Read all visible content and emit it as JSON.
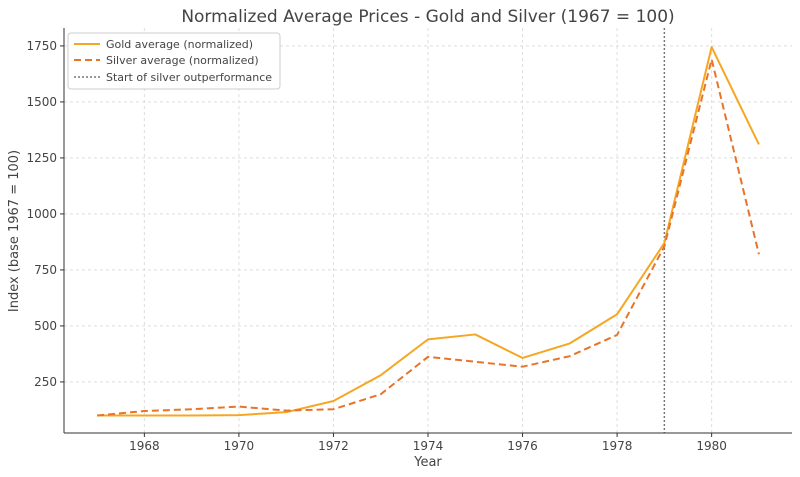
{
  "chart_data": {
    "type": "line",
    "title": "Normalized Average Prices - Gold and Silver (1967 = 100)",
    "xlabel": "Year",
    "ylabel": "Index (base 1967 = 100)",
    "xlim": [
      1966.3,
      1981.7
    ],
    "ylim": [
      22,
      1830
    ],
    "xticks": [
      1968,
      1970,
      1972,
      1974,
      1976,
      1978,
      1980
    ],
    "yticks": [
      250,
      500,
      750,
      1000,
      1250,
      1500,
      1750
    ],
    "x": [
      1967,
      1968,
      1969,
      1970,
      1971,
      1972,
      1973,
      1974,
      1975,
      1976,
      1977,
      1978,
      1979,
      1980,
      1981
    ],
    "series": [
      {
        "name": "Gold average (normalized)",
        "color": "#f5a623",
        "style": "solid",
        "values": [
          100,
          100,
          100,
          102,
          115,
          165,
          280,
          440,
          462,
          357,
          422,
          552,
          870,
          1745,
          1310
        ]
      },
      {
        "name": "Silver average (normalized)",
        "color": "#e8742a",
        "style": "dashed",
        "values": [
          100,
          120,
          128,
          140,
          122,
          128,
          195,
          362,
          340,
          318,
          365,
          460,
          855,
          1690,
          820
        ]
      }
    ],
    "annotations": [
      {
        "name": "Start of silver outperformance",
        "type": "vline",
        "x": 1979,
        "color": "#777777",
        "style": "dotted"
      }
    ],
    "grid": true,
    "legend_position": "upper-left"
  }
}
